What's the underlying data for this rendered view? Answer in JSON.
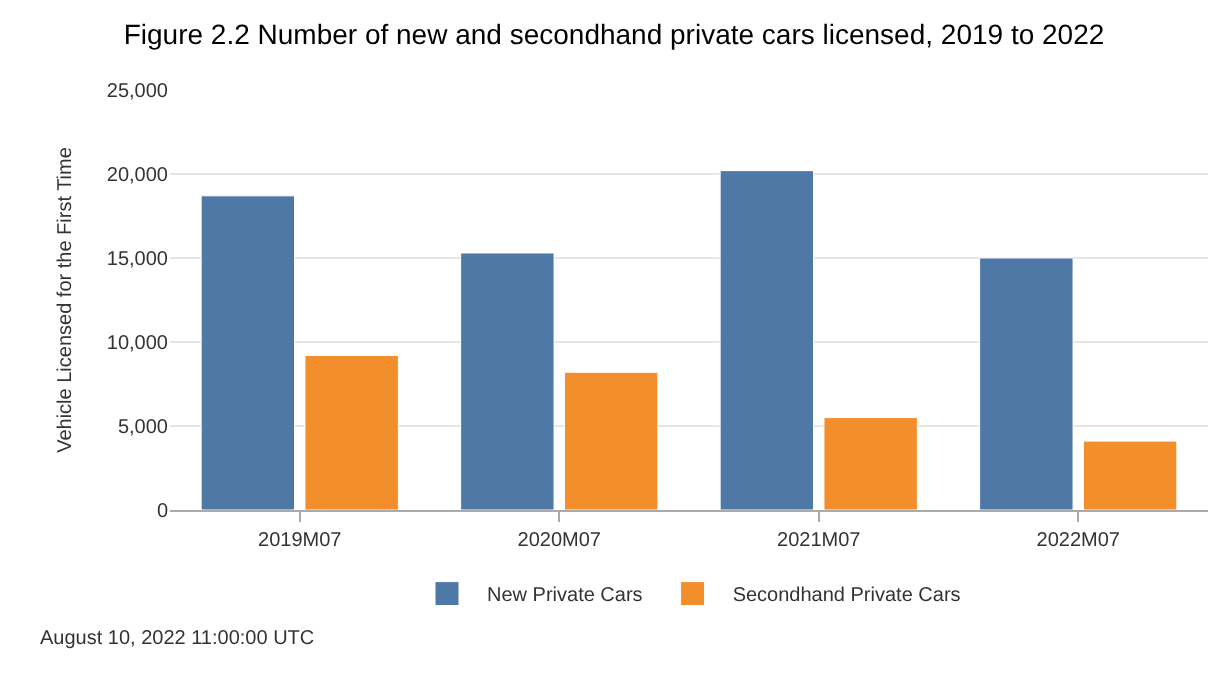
{
  "chart_data": {
    "type": "bar",
    "title": "Figure 2.2 Number of new and secondhand private cars licensed, 2019 to 2022",
    "ylabel": "Vehicle Licensed for the First Time",
    "categories": [
      "2019M07",
      "2020M07",
      "2021M07",
      "2022M07"
    ],
    "series": [
      {
        "name": "New Private Cars",
        "color": "#4e79a7",
        "values": [
          18700,
          15300,
          20200,
          15000
        ]
      },
      {
        "name": "Secondhand Private Cars",
        "color": "#f28e2b",
        "values": [
          9200,
          8200,
          5500,
          4100
        ]
      }
    ],
    "ylim": [
      0,
      25000
    ],
    "yticks": [
      {
        "value": 0,
        "label": "0"
      },
      {
        "value": 5000,
        "label": "5,000"
      },
      {
        "value": 10000,
        "label": "10,000"
      },
      {
        "value": 15000,
        "label": "15,000"
      },
      {
        "value": 20000,
        "label": "20,000"
      },
      {
        "value": 25000,
        "label": "25,000"
      }
    ],
    "grid": "y",
    "legend": "bottom",
    "annotations": [
      "August 10, 2022 11:00:00 UTC"
    ]
  }
}
